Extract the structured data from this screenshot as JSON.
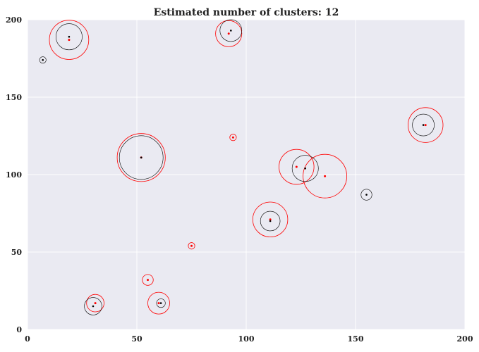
{
  "chart_data": {
    "type": "scatter",
    "title": "Estimated number of clusters: 12",
    "xlabel": "",
    "ylabel": "",
    "xlim": [
      0,
      200
    ],
    "ylim": [
      0,
      200
    ],
    "x_ticks": [
      0,
      50,
      100,
      150,
      200
    ],
    "y_ticks": [
      0,
      50,
      100,
      150,
      200
    ],
    "grid": true,
    "colors": {
      "background": "#eaeaf2",
      "grid": "#ffffff",
      "estimated": "#ff0000",
      "reference": "#000000"
    },
    "estimated_clusters": [
      {
        "x": 19,
        "y": 187,
        "r": 9
      },
      {
        "x": 92,
        "y": 191,
        "r": 6
      },
      {
        "x": 94,
        "y": 124,
        "r": 1.5
      },
      {
        "x": 52,
        "y": 111,
        "r": 11
      },
      {
        "x": 123,
        "y": 105,
        "r": 8
      },
      {
        "x": 136,
        "y": 99,
        "r": 10
      },
      {
        "x": 182,
        "y": 132,
        "r": 8
      },
      {
        "x": 111,
        "y": 71,
        "r": 8
      },
      {
        "x": 75,
        "y": 54,
        "r": 1.5
      },
      {
        "x": 55,
        "y": 32,
        "r": 2.5
      },
      {
        "x": 31,
        "y": 17,
        "r": 4
      },
      {
        "x": 60,
        "y": 17,
        "r": 5
      }
    ],
    "reference_clusters": [
      {
        "x": 19,
        "y": 189,
        "r": 6
      },
      {
        "x": 93,
        "y": 193,
        "r": 5
      },
      {
        "x": 7,
        "y": 174,
        "r": 1.5
      },
      {
        "x": 52,
        "y": 111,
        "r": 10
      },
      {
        "x": 127,
        "y": 104,
        "r": 6
      },
      {
        "x": 181,
        "y": 132,
        "r": 5
      },
      {
        "x": 155,
        "y": 87,
        "r": 2.5
      },
      {
        "x": 111,
        "y": 70,
        "r": 4.5
      },
      {
        "x": 30,
        "y": 15,
        "r": 4
      },
      {
        "x": 61,
        "y": 17,
        "r": 2
      }
    ]
  }
}
